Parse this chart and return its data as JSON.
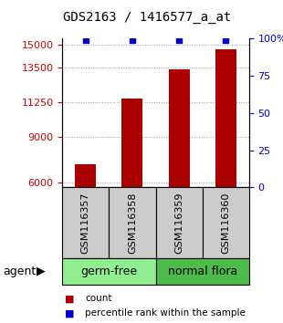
{
  "title": "GDS2163 / 1416577_a_at",
  "samples": [
    "GSM116357",
    "GSM116358",
    "GSM116359",
    "GSM116360"
  ],
  "counts": [
    7200,
    11500,
    13400,
    14700
  ],
  "percentiles": [
    99,
    99,
    99,
    99
  ],
  "groups": [
    {
      "label": "germ-free",
      "samples_idx": [
        0,
        1
      ],
      "color": "#90EE90"
    },
    {
      "label": "normal flora",
      "samples_idx": [
        2,
        3
      ],
      "color": "#4CBB4C"
    }
  ],
  "bar_color": "#AA0000",
  "dot_color": "#0000CC",
  "left_yticks": [
    6000,
    9000,
    11250,
    13500,
    15000
  ],
  "right_yticks": [
    0,
    25,
    50,
    75,
    100
  ],
  "ymin": 5700,
  "ymax": 15400,
  "pct_min": 0,
  "pct_max": 100,
  "bar_width": 0.45,
  "title_fontsize": 10,
  "tick_fontsize": 8,
  "label_fontsize": 8,
  "group_label_fontsize": 9,
  "legend_fontsize": 7.5,
  "agent_fontsize": 9,
  "background_sample_row": "#cccccc",
  "left_tick_color": "#CC0000",
  "right_tick_color": "#0000CC",
  "grid_color": "#999999",
  "grid_style": "dotted"
}
